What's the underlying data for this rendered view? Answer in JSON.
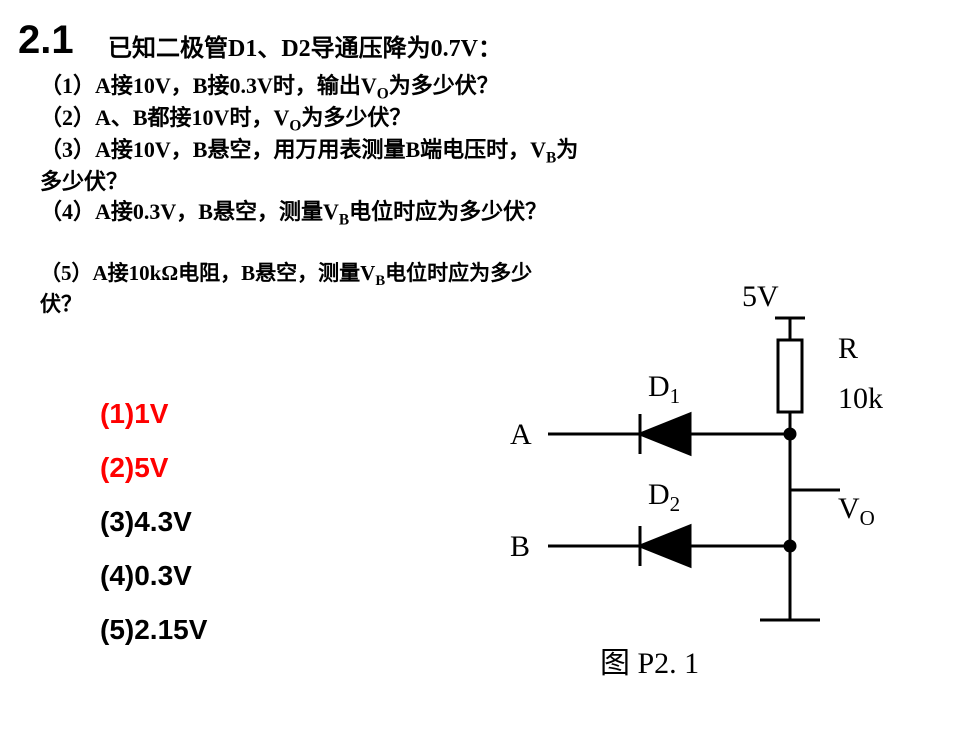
{
  "section_number": "2.1",
  "problem_intro": "已知二极管D1、D2导通压降为0.7V：",
  "questions": {
    "q1": "（1）A接10V，B接0.3V时，输出V<sub>O</sub>为多少伏？",
    "q2": "（2）A、B都接10V时，V<sub>O</sub>为多少伏？",
    "q3": "（3）A接10V，B悬空，用万用表测量B端电压时，V<sub>B</sub>为多少伏？",
    "q4": "（4）A接0.3V，B悬空，测量V<sub>B</sub>电位时应为多少伏？",
    "q5": "（5）A接10kΩ电阻，B悬空，测量V<sub>B</sub>电位时应为多少伏？"
  },
  "answers": {
    "a1": "(1)1V",
    "a2": "(2)5V",
    "a3": "(3)4.3V",
    "a4": "(4)0.3V",
    "a5": "(5)2.15V"
  },
  "circuit": {
    "supply_label": "5V",
    "R_label": "R",
    "R_value": "10k",
    "D1_label": "D",
    "D1_sub": "1",
    "D2_label": "D",
    "D2_sub": "2",
    "A_label": "A",
    "B_label": "B",
    "Vo_label": "V",
    "Vo_sub": "O",
    "caption_prefix": "图",
    "caption_num": "P2. 1"
  },
  "style": {
    "section_fontsize": 40,
    "intro_fontsize": 24,
    "question_fontsize": 22,
    "q5_fontsize": 21,
    "answer_fontsize": 28,
    "circuit_label_fontsize": 30,
    "caption_fontsize": 30,
    "colors": {
      "text": "#000000",
      "red": "#ff0000",
      "bg": "#ffffff",
      "stroke": "#000000"
    },
    "stroke_width": 3
  }
}
